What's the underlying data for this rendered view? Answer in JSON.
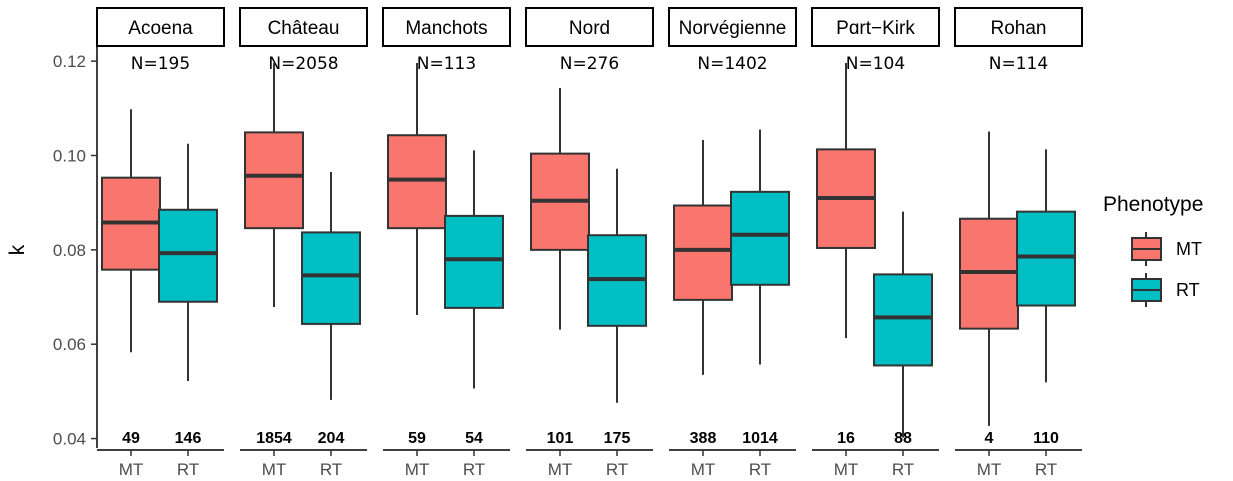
{
  "chart_data": {
    "type": "boxplot",
    "ylabel": "k",
    "ylim": [
      0.038,
      0.123
    ],
    "yticks": [
      0.04,
      0.06,
      0.08,
      0.1,
      0.12
    ],
    "ytick_labels": [
      "0.04",
      "0.06",
      "0.08",
      "0.10",
      "0.12"
    ],
    "categories": [
      "MT",
      "RT"
    ],
    "legend": {
      "title": "Phenotype",
      "position": "right",
      "entries": [
        {
          "label": "MT",
          "color": "#F8766D"
        },
        {
          "label": "RT",
          "color": "#00BFC4"
        }
      ]
    },
    "panels": [
      {
        "name": "Acoena",
        "n_label": "N=195",
        "boxes": [
          {
            "group": "MT",
            "count": "49",
            "whisker_low": 0.0583,
            "q1": 0.0758,
            "median": 0.0858,
            "q3": 0.0953,
            "whisker_high": 0.1098
          },
          {
            "group": "RT",
            "count": "146",
            "whisker_low": 0.0522,
            "q1": 0.069,
            "median": 0.0793,
            "q3": 0.0885,
            "whisker_high": 0.1025
          }
        ]
      },
      {
        "name": "Château",
        "n_label": "N=2058",
        "boxes": [
          {
            "group": "MT",
            "count": "1854",
            "whisker_low": 0.0679,
            "q1": 0.0846,
            "median": 0.0957,
            "q3": 0.1049,
            "whisker_high": 0.1196
          },
          {
            "group": "RT",
            "count": "204",
            "whisker_low": 0.0482,
            "q1": 0.0643,
            "median": 0.0746,
            "q3": 0.0837,
            "whisker_high": 0.0965
          }
        ]
      },
      {
        "name": "Manchots",
        "n_label": "N=113",
        "boxes": [
          {
            "group": "MT",
            "count": "59",
            "whisker_low": 0.0662,
            "q1": 0.0846,
            "median": 0.0949,
            "q3": 0.1043,
            "whisker_high": 0.1196
          },
          {
            "group": "RT",
            "count": "54",
            "whisker_low": 0.0506,
            "q1": 0.0677,
            "median": 0.078,
            "q3": 0.0872,
            "whisker_high": 0.1011
          }
        ]
      },
      {
        "name": "Nord",
        "n_label": "N=276",
        "boxes": [
          {
            "group": "MT",
            "count": "101",
            "whisker_low": 0.0631,
            "q1": 0.08,
            "median": 0.0904,
            "q3": 0.1004,
            "whisker_high": 0.1143
          },
          {
            "group": "RT",
            "count": "175",
            "whisker_low": 0.0476,
            "q1": 0.0639,
            "median": 0.0738,
            "q3": 0.0831,
            "whisker_high": 0.0972
          }
        ]
      },
      {
        "name": "Norvégienne",
        "n_label": "N=1402",
        "boxes": [
          {
            "group": "MT",
            "count": "388",
            "whisker_low": 0.0535,
            "q1": 0.0694,
            "median": 0.08,
            "q3": 0.0894,
            "whisker_high": 0.1033
          },
          {
            "group": "RT",
            "count": "1014",
            "whisker_low": 0.0557,
            "q1": 0.0726,
            "median": 0.0832,
            "q3": 0.0923,
            "whisker_high": 0.1055
          }
        ]
      },
      {
        "name": "Pɑrt−Kirk",
        "n_label": "N=104",
        "boxes": [
          {
            "group": "MT",
            "count": "16",
            "whisker_low": 0.0613,
            "q1": 0.0804,
            "median": 0.091,
            "q3": 0.1013,
            "whisker_high": 0.1196
          },
          {
            "group": "RT",
            "count": "88",
            "whisker_low": 0.0402,
            "q1": 0.0555,
            "median": 0.0657,
            "q3": 0.0748,
            "whisker_high": 0.0881
          }
        ]
      },
      {
        "name": "Rohan",
        "n_label": "N=114",
        "boxes": [
          {
            "group": "MT",
            "count": "4",
            "whisker_low": 0.0427,
            "q1": 0.0633,
            "median": 0.0753,
            "q3": 0.0866,
            "whisker_high": 0.1051
          },
          {
            "group": "RT",
            "count": "110",
            "whisker_low": 0.0519,
            "q1": 0.0682,
            "median": 0.0786,
            "q3": 0.0881,
            "whisker_high": 0.1013
          }
        ]
      }
    ]
  }
}
